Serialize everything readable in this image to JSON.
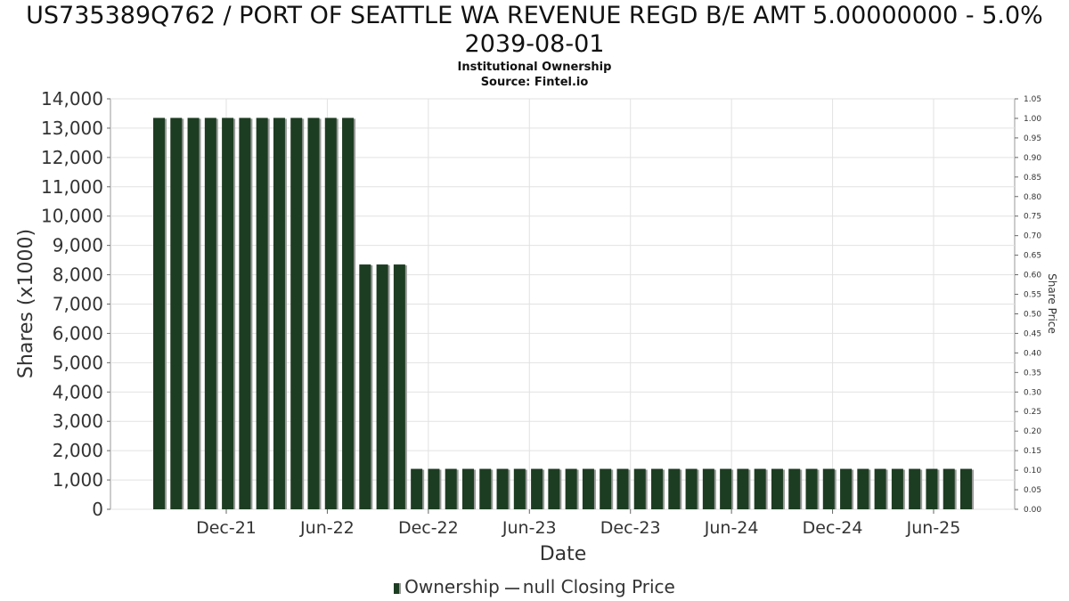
{
  "chart_data": {
    "type": "bar",
    "title": "US735389Q762 / PORT OF SEATTLE WA REVENUE REGD B/E AMT 5.00000000 - 5.0% 2039-08-01",
    "subtitle": [
      "Institutional Ownership",
      "Source: Fintel.io"
    ],
    "xlabel": "Date",
    "ylabel": "Shares (x1000)",
    "y2label": "Share Price",
    "ylim": [
      0,
      14000
    ],
    "y_ticks": [
      0,
      1000,
      2000,
      3000,
      4000,
      5000,
      6000,
      7000,
      8000,
      9000,
      10000,
      11000,
      12000,
      13000,
      14000
    ],
    "y_tick_labels": [
      "0",
      "1,000",
      "2,000",
      "3,000",
      "4,000",
      "5,000",
      "6,000",
      "7,000",
      "8,000",
      "9,000",
      "10,000",
      "11,000",
      "12,000",
      "13,000",
      "14,000"
    ],
    "y2lim": [
      0,
      1.05
    ],
    "y2_tick_labels": [
      "0.00",
      "0.05",
      "0.10",
      "0.15",
      "0.20",
      "0.25",
      "0.30",
      "0.35",
      "0.40",
      "0.45",
      "0.50",
      "0.55",
      "0.60",
      "0.65",
      "0.70",
      "0.75",
      "0.80",
      "0.85",
      "0.90",
      "0.95",
      "1.00",
      "1.05"
    ],
    "x_tick_labels": [
      "Dec-21",
      "Jun-22",
      "Dec-22",
      "Jun-23",
      "Dec-23",
      "Jun-24",
      "Dec-24",
      "Jun-25"
    ],
    "grid": true,
    "legend_placement": "bottom-center",
    "series": [
      {
        "name": "Ownership",
        "color": "#1d3d22",
        "values": [
          13350,
          13350,
          13350,
          13350,
          13350,
          13350,
          13350,
          13350,
          13350,
          13350,
          13350,
          13350,
          8350,
          8350,
          8350,
          1380,
          1380,
          1380,
          1380,
          1380,
          1380,
          1380,
          1380,
          1380,
          1380,
          1380,
          1380,
          1380,
          1380,
          1380,
          1380,
          1380,
          1380,
          1380,
          1380,
          1380,
          1380,
          1380,
          1380,
          1380,
          1380,
          1380,
          1380,
          1380,
          1380,
          1380,
          1380,
          1380
        ]
      },
      {
        "name": "null Closing Price",
        "color": "#555555",
        "values": []
      }
    ]
  },
  "legend": {
    "ownership_label": "Ownership",
    "price_label": "null Closing Price"
  }
}
